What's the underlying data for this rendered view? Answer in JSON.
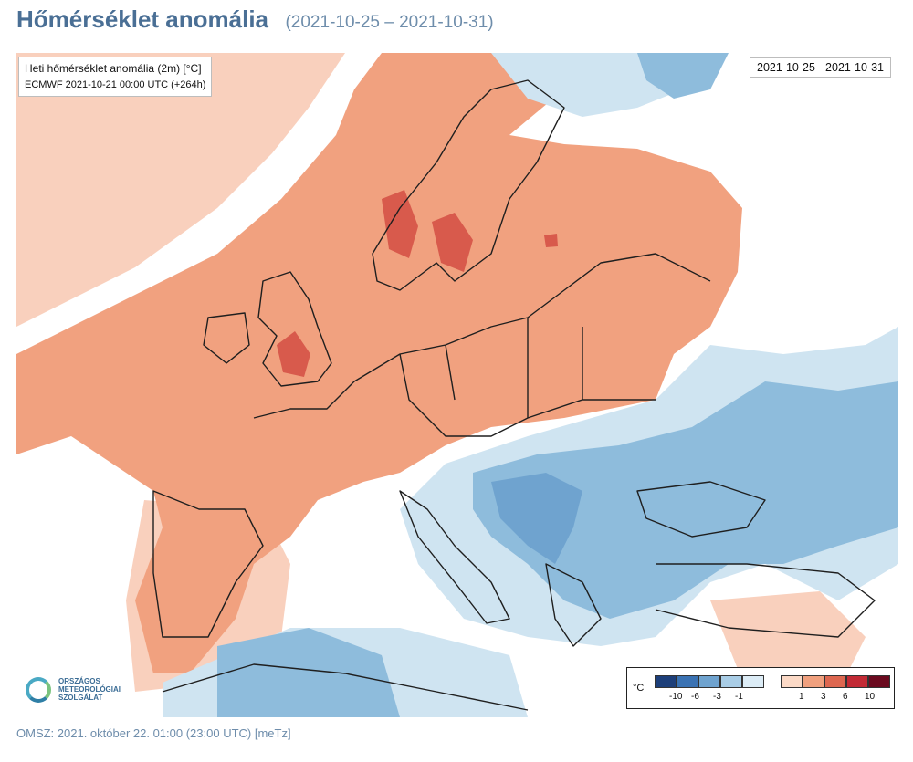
{
  "header": {
    "title": "Hőmérséklet anomália",
    "date_range": "(2021-10-25 – 2021-10-31)"
  },
  "map": {
    "info_line1": "Heti hőmérséklet anomália (2m) [°C]",
    "info_line2": "ECMWF 2021-10-21 00:00 UTC (+264h)",
    "date_box": "2021-10-25 - 2021-10-31",
    "colors": {
      "cold_strong": "#1d4f8c",
      "cold_mid": "#4f86c1",
      "cold_light": "#8ebcdc",
      "cold_faint": "#cfe4f1",
      "warm_faint": "#f9d0bd",
      "warm_light": "#f1a17f",
      "warm_mid": "#d85a4c",
      "warm_strong": "#b9232f",
      "warm_max": "#6b0a1f",
      "border": "#1f1f1f"
    }
  },
  "logo": {
    "line1": "ORSZÁGOS",
    "line2": "METEOROLÓGIAI",
    "line3": "SZOLGÁLAT"
  },
  "legend": {
    "unit": "°C",
    "cold_ticks": [
      "-10",
      "-6",
      "-3",
      "-1"
    ],
    "warm_ticks": [
      "1",
      "3",
      "6",
      "10"
    ],
    "cold_colors": [
      "#1d3f7a",
      "#3a72b3",
      "#6fa3cf",
      "#a9cde6",
      "#dcecf6"
    ],
    "warm_colors": [
      "#fbd9c6",
      "#f0a07e",
      "#dd6750",
      "#c22a35",
      "#6b0a1f"
    ]
  },
  "footer": {
    "text": "OMSZ: 2021. október 22. 01:00 (23:00  UTC)  [meTz]"
  }
}
